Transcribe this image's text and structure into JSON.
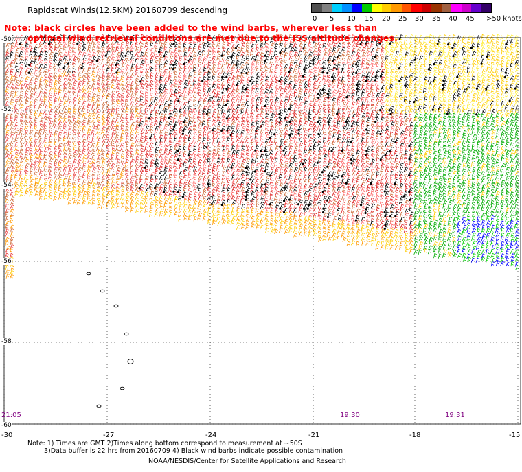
{
  "header": {
    "title": "Rapidscat Winds(12.5KM) 20160709 descending",
    "note_line1": "Note: black circles have been added to the wind barbs, wherever less than",
    "note_line2": "optimal wind retrieval conditions are met due to the ISS altitude changes."
  },
  "legend": {
    "colors": [
      "#505050",
      "#808080",
      "#00d0ff",
      "#0090ff",
      "#0000ff",
      "#00cc00",
      "#ffff00",
      "#ffcc00",
      "#ff9900",
      "#ff5500",
      "#ff0000",
      "#cc0000",
      "#993300",
      "#a06040",
      "#ff00ff",
      "#cc00cc",
      "#6600cc",
      "#330066"
    ],
    "labels": [
      "0",
      "5",
      "10",
      "15",
      "20",
      "25",
      "30",
      "35",
      "40",
      "45",
      ">50 knots"
    ]
  },
  "map": {
    "latitude_labels": [
      "-50",
      "-52",
      "-54",
      "-56",
      "-58",
      "-60"
    ],
    "longitude_labels": [
      "-30",
      "-27",
      "-24",
      "-21",
      "-18",
      "-15"
    ],
    "time_labels": [
      "21:05",
      "19:30",
      "19:31"
    ]
  },
  "footer": {
    "line1": "Note: 1) Times are GMT 2)Times along bottom correspond to measurement at ~50S",
    "line2": "3)Data buffer is 22 hrs from 20160709 4) Black wind barbs indicate possible contamination",
    "line3": "NOAA/NESDIS/Center for Satellite Applications and Research"
  }
}
